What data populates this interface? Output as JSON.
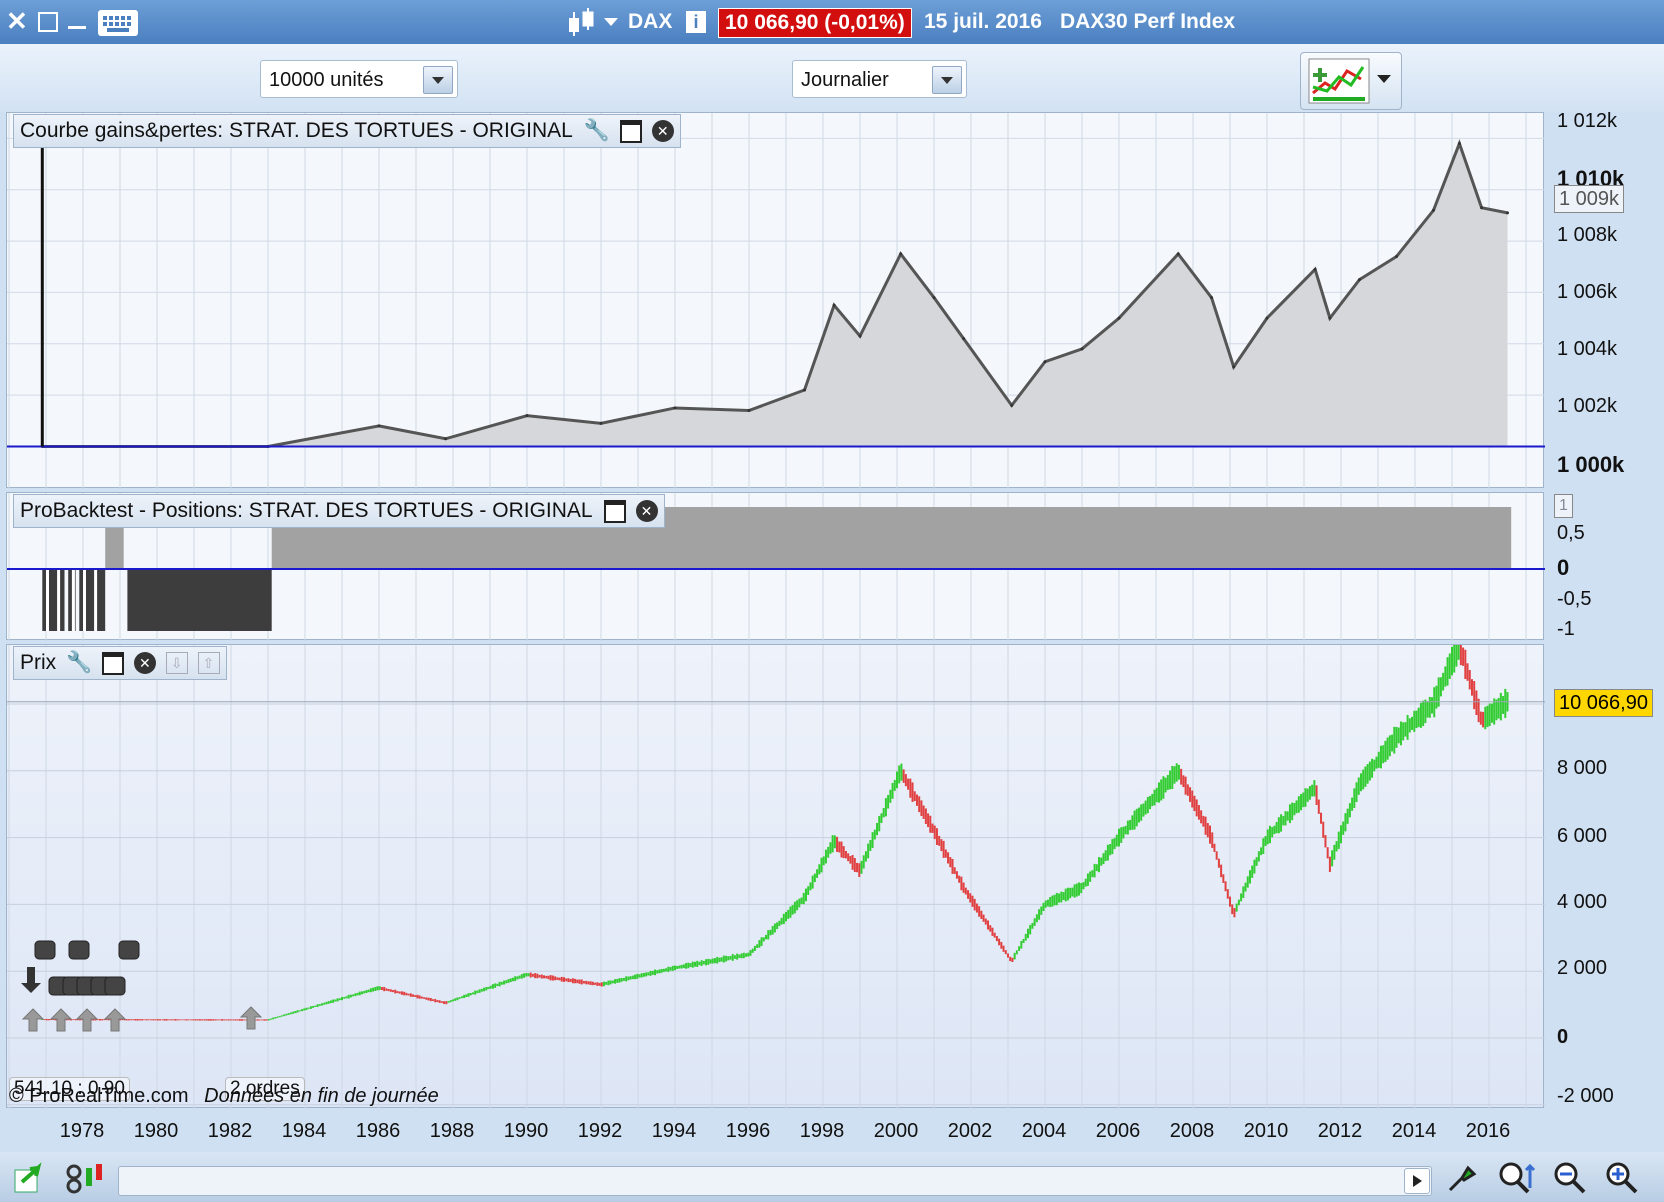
{
  "titlebar": {
    "ticker": "DAX",
    "price_change": "10 066,90 (-0,01%)",
    "date": "15 juil. 2016",
    "index_name": "DAX30 Perf Index"
  },
  "toolbar": {
    "units_select": "10000 unités",
    "period_select": "Journalier"
  },
  "equity_panel": {
    "label": "Courbe gains&pertes: STRAT. DES TORTUES - ORIGINAL",
    "y_ticks": [
      "1 012k",
      "1 010k",
      "1 008k",
      "1 006k",
      "1 004k",
      "1 002k",
      "1 000k"
    ],
    "current_value": "1 009k"
  },
  "positions_panel": {
    "label": "ProBacktest - Positions: STRAT. DES TORTUES - ORIGINAL",
    "y_ticks": [
      "1",
      "0,5",
      "0",
      "-0,5",
      "-1"
    ]
  },
  "price_panel": {
    "label": "Prix",
    "y_ticks": [
      "8 000",
      "6 000",
      "4 000",
      "2 000",
      "0",
      "-2 000"
    ],
    "current_price": "10 066,90",
    "watermark": "© ProRealTime.com",
    "data_note": "Données en fin de journée",
    "order_label_1": "541.10 : 0.90",
    "order_label_2": "2 ordres"
  },
  "x_axis": {
    "ticks": [
      "1978",
      "1980",
      "1982",
      "1984",
      "1986",
      "1988",
      "1990",
      "1992",
      "1994",
      "1996",
      "1998",
      "2000",
      "2002",
      "2004",
      "2006",
      "2008",
      "2010",
      "2012",
      "2014",
      "2016"
    ]
  },
  "colors": {
    "up_candle": "#33cc33",
    "down_candle": "#e04040",
    "equity_fill": "#d6d7da",
    "zero_line": "#1a1acc",
    "price_badge": "#ffd700"
  },
  "chart_data": [
    {
      "type": "area",
      "x": [
        1976.9,
        1983,
        1986,
        1987.8,
        1990,
        1992,
        1994,
        1996,
        1997.5,
        1998.3,
        1999,
        2000.1,
        2001,
        2001.8,
        2003.1,
        2004,
        2005,
        2006,
        2007.6,
        2008.5,
        2009.1,
        2010,
        2011.3,
        2011.7,
        2012.5,
        2013.5,
        2014.5,
        2015.2,
        2015.8,
        2016.5
      ],
      "y": [
        1000000,
        1000000,
        1000800,
        1000300,
        1001200,
        1000900,
        1001500,
        1001400,
        1002200,
        1005500,
        1004300,
        1007500,
        1005800,
        1004200,
        1001600,
        1003300,
        1003800,
        1005000,
        1007500,
        1005800,
        1003100,
        1005000,
        1006900,
        1005000,
        1006500,
        1007400,
        1009200,
        1011800,
        1009300,
        1009100
      ],
      "ylim": [
        999200,
        1012600
      ]
    },
    {
      "type": "bar",
      "x_segments": [
        [
          1976.9,
          1977.5,
          -1
        ],
        [
          1977.6,
          1977.8,
          -1
        ],
        [
          1977.9,
          1978.6,
          -1
        ],
        [
          1978.6,
          1979.1,
          1
        ],
        [
          1979.2,
          1983.1,
          -1
        ],
        [
          1983.1,
          2016.6,
          1
        ]
      ],
      "ylim": [
        -1.15,
        1.15
      ]
    },
    {
      "type": "line",
      "x": [
        1976.9,
        1983,
        1986,
        1987.8,
        1990,
        1992,
        1994,
        1996,
        1997.5,
        1998.3,
        1999,
        2000.1,
        2001,
        2001.8,
        2003.1,
        2004,
        2005,
        2006,
        2007.6,
        2008.5,
        2009.1,
        2010,
        2011.3,
        2011.7,
        2012.5,
        2013.5,
        2014.5,
        2015.2,
        2015.8,
        2016.5
      ],
      "y": [
        550,
        540,
        1500,
        1050,
        1900,
        1600,
        2100,
        2500,
        4200,
        5900,
        5000,
        8000,
        6200,
        4500,
        2300,
        4000,
        4500,
        6000,
        8000,
        6000,
        3700,
        6000,
        7500,
        5200,
        7600,
        9000,
        10000,
        11800,
        9500,
        10066.9
      ],
      "ylim": [
        -2200,
        11500
      ]
    }
  ]
}
